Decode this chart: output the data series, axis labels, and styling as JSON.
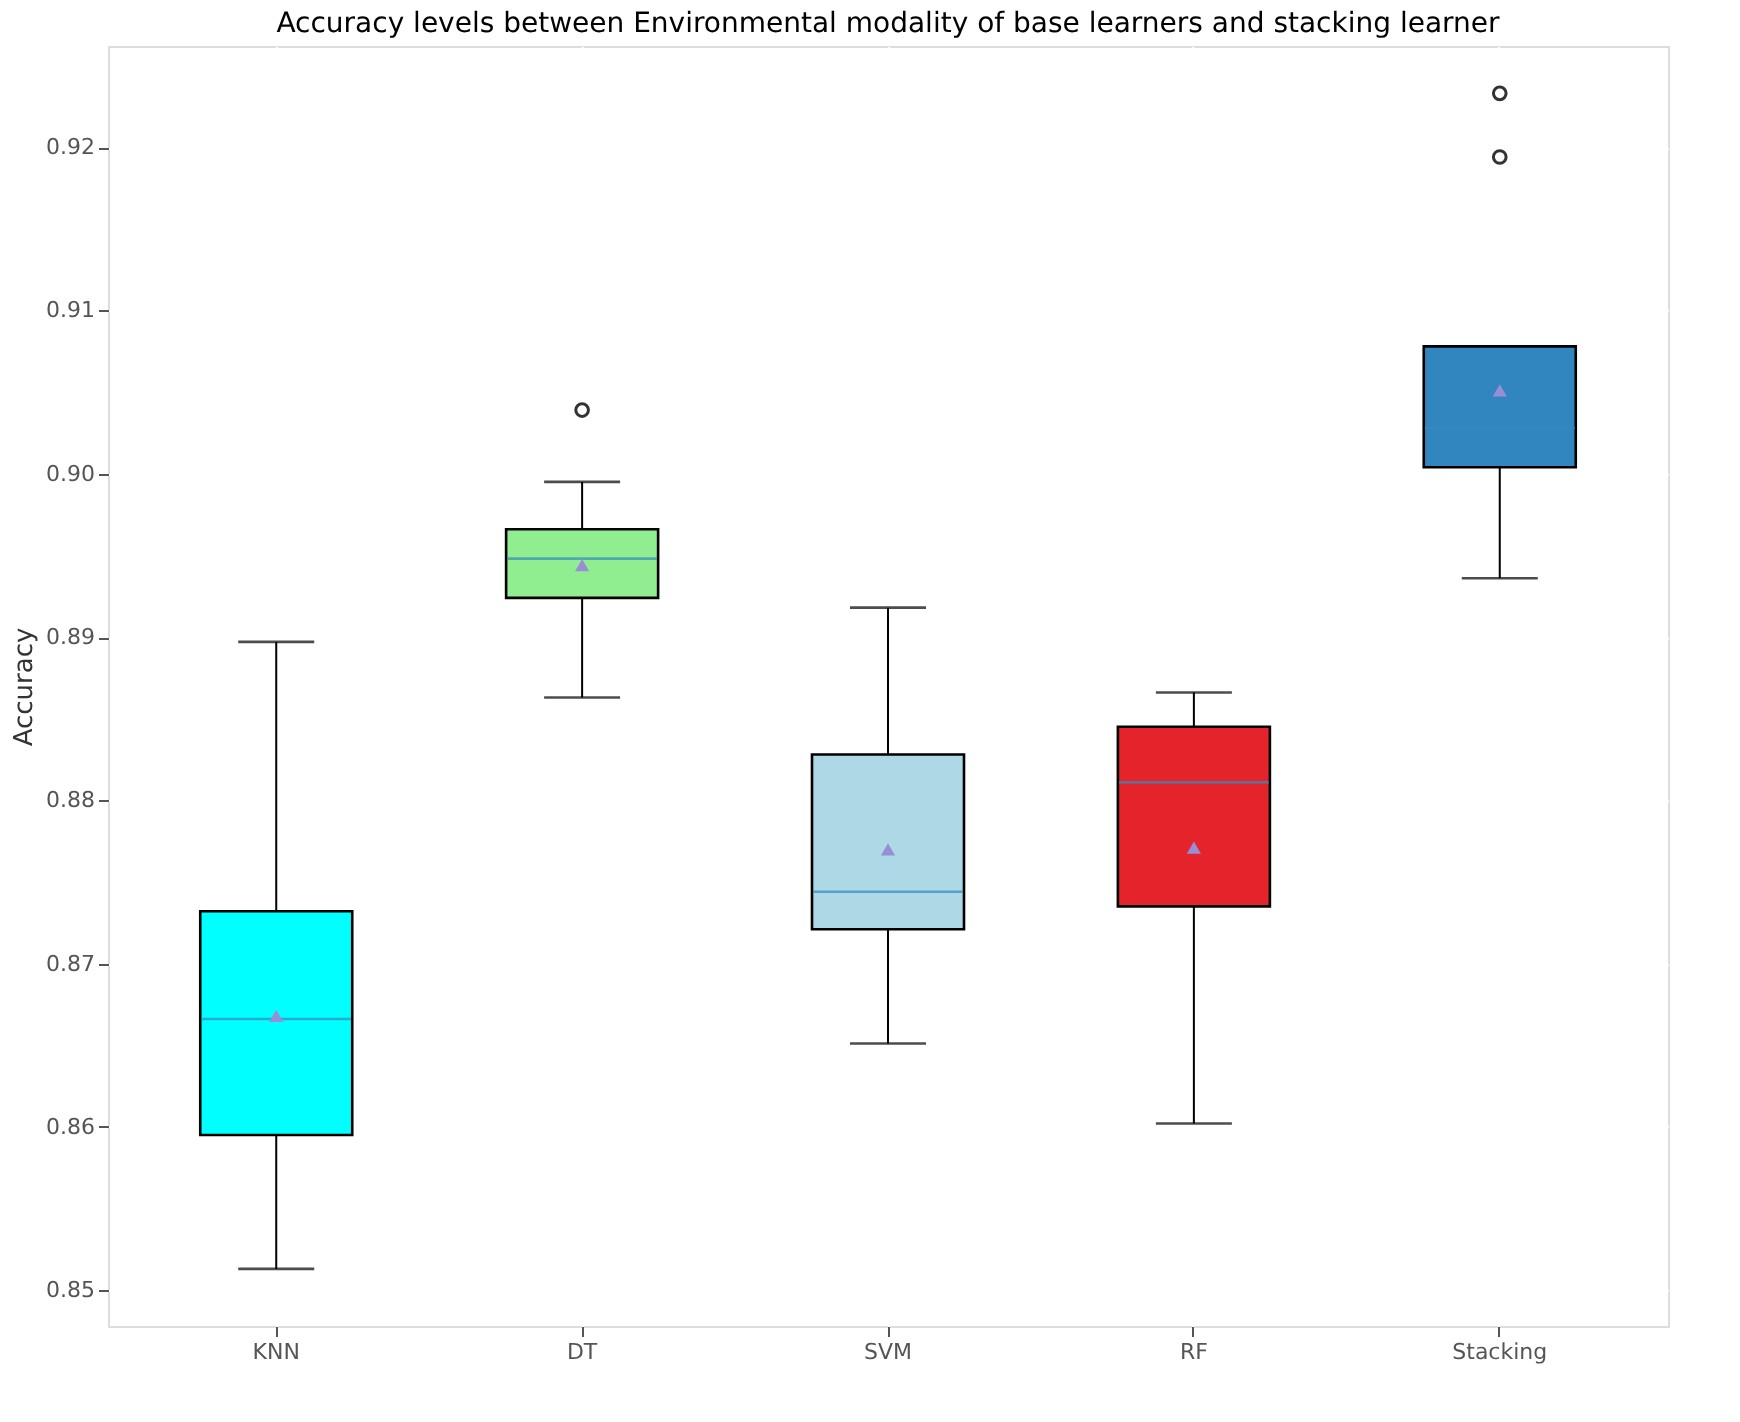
{
  "chart_data": {
    "type": "box",
    "title": "Accuracy levels between Environmental modality of base learners and stacking learner",
    "ylabel": "Accuracy",
    "categories": [
      "KNN",
      "DT",
      "SVM",
      "RF",
      "Stacking"
    ],
    "colors": [
      "#00ffff",
      "#90ee90",
      "#add8e6",
      "#e4232a",
      "#3186c0"
    ],
    "boxes": [
      {
        "low": 0.8513,
        "q1": 0.8595,
        "median": 0.8666,
        "q3": 0.8732,
        "high": 0.8897,
        "mean": 0.8668
      },
      {
        "low": 0.8863,
        "q1": 0.8924,
        "median": 0.8948,
        "q3": 0.8966,
        "high": 0.8995,
        "mean": 0.8944,
        "outliers": [
          0.9039
        ]
      },
      {
        "low": 0.8651,
        "q1": 0.8721,
        "median": 0.8744,
        "q3": 0.8828,
        "high": 0.8918,
        "mean": 0.877
      },
      {
        "low": 0.8602,
        "q1": 0.8735,
        "median": 0.8811,
        "q3": 0.8845,
        "high": 0.8866,
        "mean": 0.8771
      },
      {
        "low": 0.8936,
        "q1": 0.9004,
        "median": 0.9028,
        "q3": 0.9078,
        "high": 0.9078,
        "mean": 0.9051,
        "outliers": [
          0.9194,
          0.9233
        ]
      }
    ],
    "ylim": [
      0.8478,
      0.9262
    ],
    "yticks": [
      0.85,
      0.86,
      0.87,
      0.88,
      0.89,
      {
        "value": 0.9,
        "label": "0.90"
      },
      0.91,
      0.92
    ],
    "grid": true
  }
}
